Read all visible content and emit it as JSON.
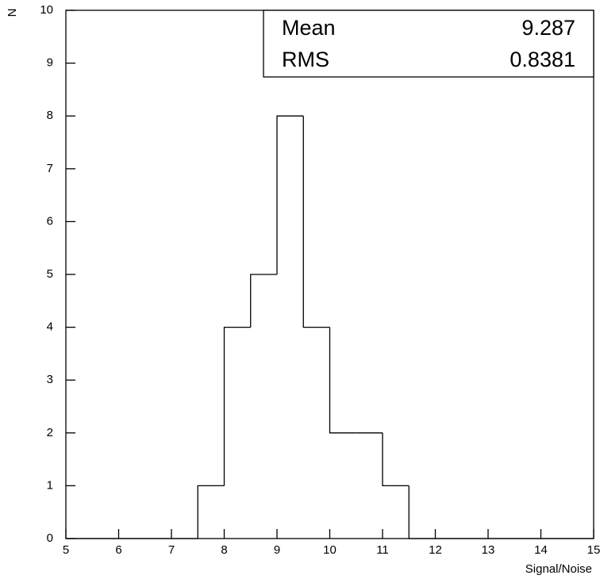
{
  "chart_data": {
    "type": "histogram",
    "x_label": "Signal/Noise",
    "y_label": "N",
    "bins": [
      5,
      5.5,
      6,
      6.5,
      7,
      7.5,
      8,
      8.5,
      9,
      9.5,
      10,
      10.5,
      11,
      11.5,
      12,
      12.5,
      13,
      13.5,
      14,
      14.5,
      15
    ],
    "values": [
      0,
      0,
      0,
      0,
      0,
      1,
      4,
      5,
      8,
      4,
      2,
      2,
      1,
      0,
      0,
      0,
      0,
      0,
      0,
      0
    ],
    "color": "#000000",
    "xlim": [
      5,
      15
    ],
    "xticks": [
      5,
      6,
      7,
      8,
      9,
      10,
      11,
      12,
      13,
      14,
      15
    ],
    "ylim": [
      0,
      10
    ],
    "yticks": [
      0,
      1,
      2,
      3,
      4,
      5,
      6,
      7,
      8,
      9,
      10
    ],
    "grid": false,
    "stats": [
      {
        "label": "Mean",
        "value": 9.287
      },
      {
        "label": "RMS",
        "value": 0.8381
      }
    ]
  }
}
